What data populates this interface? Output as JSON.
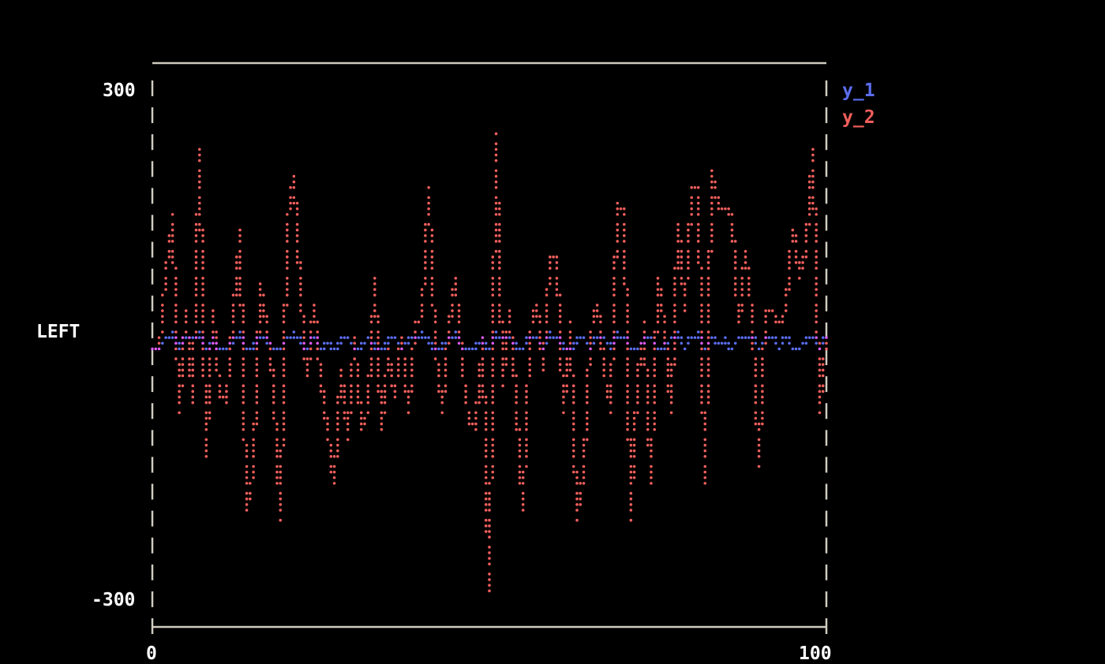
{
  "chart_data": {
    "type": "line",
    "title": "",
    "xlabel": "",
    "ylabel": "LEFT",
    "xlim": [
      0,
      100
    ],
    "ylim": [
      -300,
      300
    ],
    "x_ticks": [
      "0",
      "100"
    ],
    "y_ticks": [
      "300",
      "-300"
    ],
    "grid": false,
    "legend_placement": "top-right",
    "x": [
      0,
      1,
      2,
      3,
      4,
      5,
      6,
      7,
      8,
      9,
      10,
      11,
      12,
      13,
      14,
      15,
      16,
      17,
      18,
      19,
      20,
      21,
      22,
      23,
      24,
      25,
      26,
      27,
      28,
      29,
      30,
      31,
      32,
      33,
      34,
      35,
      36,
      37,
      38,
      39,
      40,
      41,
      42,
      43,
      44,
      45,
      46,
      47,
      48,
      49,
      50,
      51,
      52,
      53,
      54,
      55,
      56,
      57,
      58,
      59,
      60,
      61,
      62,
      63,
      64,
      65,
      66,
      67,
      68,
      69,
      70,
      71,
      72,
      73,
      74,
      75,
      76,
      77,
      78,
      79,
      80,
      81,
      82,
      83,
      84,
      85,
      86,
      87,
      88,
      89,
      90,
      91,
      92,
      93,
      94,
      95,
      96,
      97,
      98,
      99,
      100
    ],
    "series": [
      {
        "name": "y_1",
        "color": "#5b6ef0",
        "values": [
          -8,
          -10,
          8,
          12,
          -6,
          10,
          8,
          12,
          -10,
          6,
          -10,
          -8,
          4,
          12,
          -10,
          -6,
          10,
          4,
          -8,
          -10,
          8,
          12,
          4,
          -10,
          10,
          -8,
          2,
          -10,
          6,
          8,
          -10,
          -6,
          8,
          -4,
          -10,
          6,
          8,
          -10,
          4,
          10,
          12,
          4,
          -10,
          -6,
          8,
          12,
          -10,
          -8,
          -4,
          6,
          -10,
          12,
          10,
          8,
          -6,
          -10,
          10,
          8,
          -8,
          12,
          10,
          -6,
          -10,
          6,
          8,
          -10,
          10,
          8,
          -6,
          12,
          10,
          -10,
          -8,
          6,
          8,
          -10,
          -6,
          8,
          12,
          -10,
          10,
          12,
          -10,
          8,
          -4,
          6,
          -10,
          8,
          6,
          10,
          -10,
          8,
          10,
          -8,
          10,
          -10,
          -8,
          4,
          10,
          -10,
          10
        ]
      },
      {
        "name": "y_2",
        "color": "#f25f5c",
        "values": [
          -10,
          -10,
          81,
          148,
          -77,
          40,
          -70,
          227,
          -137,
          40,
          -60,
          -70,
          30,
          133,
          -200,
          -150,
          70,
          20,
          -50,
          -207,
          137,
          200,
          60,
          -40,
          50,
          -45,
          -100,
          -170,
          -30,
          -110,
          10,
          -100,
          -80,
          75,
          -100,
          -10,
          -60,
          10,
          -80,
          20,
          30,
          181,
          0,
          -80,
          20,
          75,
          -30,
          -90,
          -100,
          10,
          -297,
          242,
          -50,
          40,
          -70,
          -200,
          10,
          50,
          -30,
          100,
          100,
          -80,
          20,
          -207,
          -150,
          10,
          50,
          -30,
          -80,
          163,
          160,
          -204,
          -40,
          20,
          -170,
          80,
          20,
          -80,
          144,
          40,
          180,
          180,
          -170,
          207,
          160,
          160,
          150,
          20,
          110,
          30,
          -142,
          40,
          40,
          20,
          40,
          137,
          80,
          110,
          233,
          -77,
          10
        ]
      }
    ],
    "overlap_color": "#de5cf5",
    "axis_color": "#d0ccc0"
  }
}
